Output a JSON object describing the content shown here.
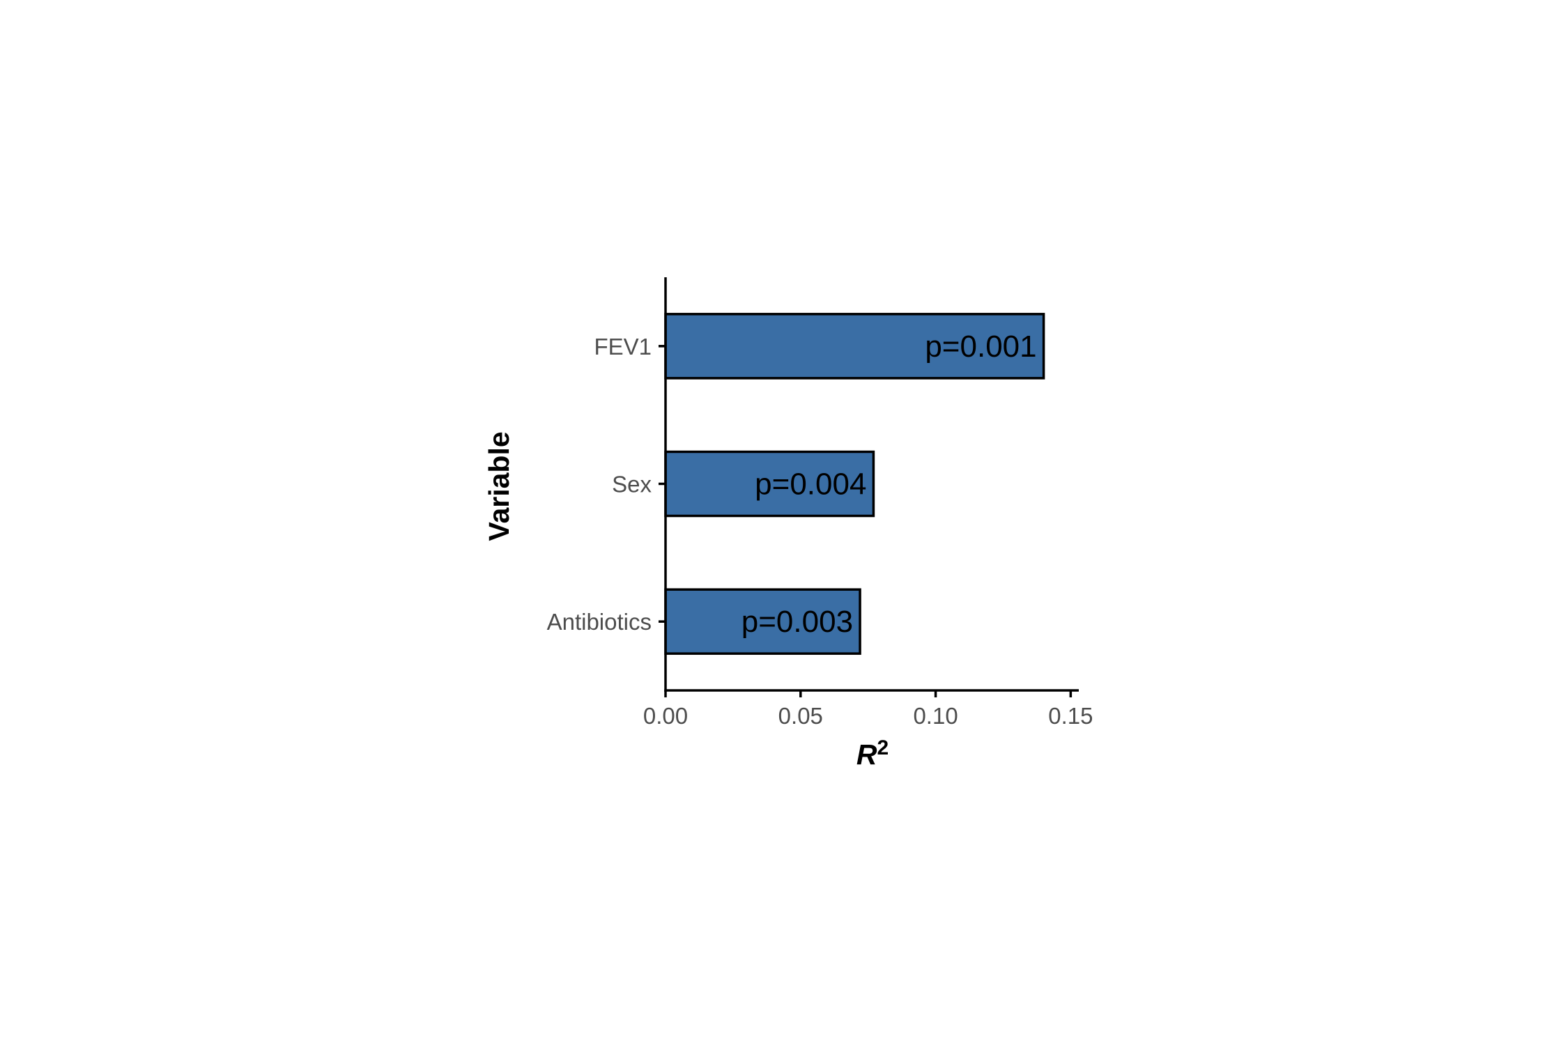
{
  "chart_data": {
    "type": "bar",
    "orientation": "horizontal",
    "categories": [
      "FEV1",
      "Sex",
      "Antibiotics"
    ],
    "values": [
      0.14,
      0.077,
      0.072
    ],
    "bar_labels": [
      "p=0.001",
      "p=0.004",
      "p=0.003"
    ],
    "xlabel": "R",
    "xlabel_superscript": "2",
    "ylabel": "Variable",
    "xlim": [
      0,
      0.153
    ],
    "xticks": [
      0.0,
      0.05,
      0.1,
      0.15
    ],
    "xtick_labels": [
      "0.00",
      "0.05",
      "0.10",
      "0.15"
    ],
    "grid": false,
    "legend": "none",
    "colors": {
      "bar_fill": "#3a6ea5",
      "bar_stroke": "#000000",
      "axis": "#000000"
    }
  }
}
